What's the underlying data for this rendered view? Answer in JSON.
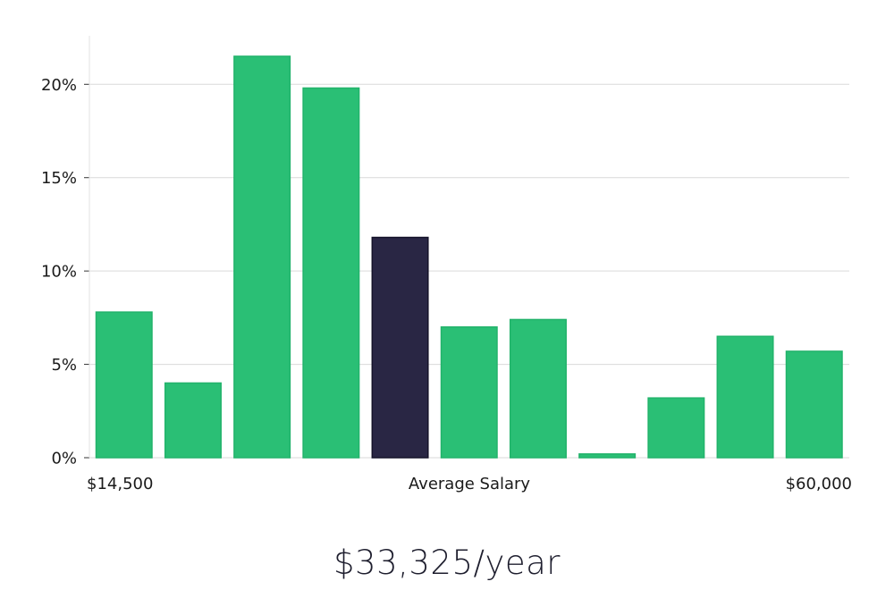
{
  "chart_data": {
    "type": "bar",
    "title": "",
    "xlabel": "Average Salary",
    "ylabel": "",
    "x_start_label": "$14,500",
    "x_end_label": "$60,000",
    "values": [
      7.8,
      4.0,
      21.5,
      19.8,
      11.8,
      7.0,
      7.4,
      0.2,
      3.2,
      6.5,
      5.7
    ],
    "highlight_index": 4,
    "ylim": [
      0,
      22.6
    ],
    "yticks": [
      0,
      5,
      10,
      15,
      20
    ],
    "ytick_labels": [
      "0%",
      "5%",
      "10%",
      "15%",
      "20%"
    ],
    "grid": true,
    "colors": {
      "bar": "#2abf75",
      "bar_edge": "#22b36b",
      "highlight": "#292644",
      "highlight_edge": "#15132a"
    }
  },
  "salary_readout": "$33,325/year"
}
